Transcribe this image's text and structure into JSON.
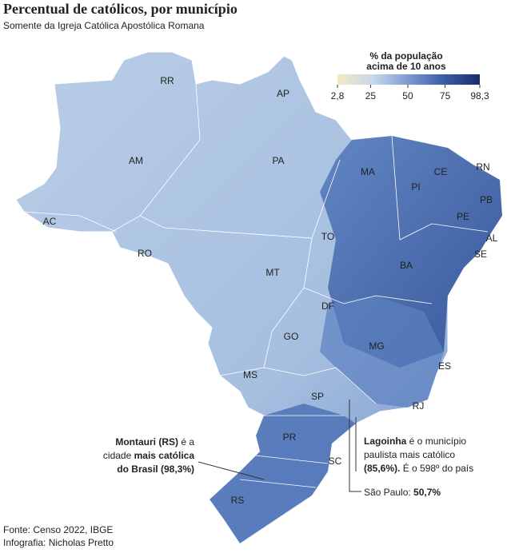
{
  "header": {
    "title": "Percentual de católicos, por município",
    "subtitle": "Somente da Igreja Católica Apostólica Romana"
  },
  "legend": {
    "title_lines": [
      "% da população",
      "acima de 10 anos"
    ],
    "range": [
      2.8,
      98.3
    ],
    "ticks": [
      {
        "value": 2.8,
        "label": "2,8"
      },
      25,
      50,
      75,
      {
        "value": 98.3,
        "label": "98,3"
      }
    ],
    "colors": [
      "#f3e8c4",
      "#c8d8ec",
      "#7c9ad0",
      "#3a5ca6",
      "#1b2d6b"
    ]
  },
  "map": {
    "state_labels": [
      "RR",
      "AP",
      "AM",
      "PA",
      "AC",
      "RO",
      "MA",
      "CE",
      "RN",
      "PI",
      "PB",
      "PE",
      "AL",
      "SE",
      "TO",
      "BA",
      "MT",
      "DF",
      "GO",
      "MG",
      "ES",
      "MS",
      "SP",
      "RJ",
      "PR",
      "SC",
      "RS"
    ]
  },
  "annotations": [
    {
      "lines": [
        [
          {
            "text": "Montauri (RS)",
            "bold": true
          },
          {
            "text": " é a",
            "bold": false
          }
        ],
        [
          {
            "text": "cidade ",
            "bold": false
          },
          {
            "text": "mais católica",
            "bold": true
          }
        ],
        [
          {
            "text": "do Brasil (98,3%)",
            "bold": true
          }
        ]
      ],
      "align": "end"
    },
    {
      "lines": [
        [
          {
            "text": "Lagoinha",
            "bold": true
          },
          {
            "text": " é o município",
            "bold": false
          }
        ],
        [
          {
            "text": "paulista mais católico",
            "bold": false
          }
        ],
        [
          {
            "text": "(85,6%).",
            "bold": true
          },
          {
            "text": " É o 598º do país",
            "bold": false
          }
        ]
      ],
      "align": "start"
    },
    {
      "lines": [
        [
          {
            "text": "São Paulo: ",
            "bold": false
          },
          {
            "text": "50,7%",
            "bold": true
          }
        ]
      ],
      "align": "start"
    }
  ],
  "footer": {
    "lines": [
      "Fonte: Censo 2022, IBGE",
      "Infografia: Nicholas Pretto"
    ]
  }
}
